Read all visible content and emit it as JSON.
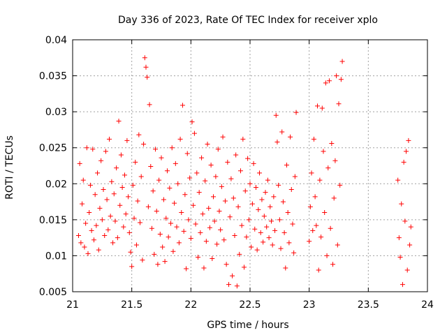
{
  "chart_data": {
    "type": "scatter",
    "title": "Day 336 of 2023, Rate Of TEC Index for receiver xplo",
    "xlabel": "GPS time / hours",
    "ylabel": "ROTI / TECUs",
    "xlim": [
      21,
      24
    ],
    "ylim": [
      0.005,
      0.04
    ],
    "x_ticks": [
      21,
      21.5,
      22,
      22.5,
      23,
      23.5,
      24
    ],
    "x_tick_labels": [
      "21",
      "21.5",
      "22",
      "22.5",
      "23",
      "23.5",
      "24"
    ],
    "y_ticks": [
      0.005,
      0.01,
      0.015,
      0.02,
      0.025,
      0.03,
      0.035,
      0.04
    ],
    "y_tick_labels": [
      "0.005",
      "0.01",
      "0.015",
      "0.02",
      "0.025",
      "0.03",
      "0.035",
      "0.04"
    ],
    "grid": true,
    "marker": "+",
    "color": "#ff0000",
    "series": [
      {
        "points": [
          [
            21.05,
            0.0128
          ],
          [
            21.06,
            0.0228
          ],
          [
            21.07,
            0.0118
          ],
          [
            21.08,
            0.0172
          ],
          [
            21.09,
            0.0205
          ],
          [
            21.1,
            0.0112
          ],
          [
            21.11,
            0.0145
          ],
          [
            21.12,
            0.025
          ],
          [
            21.13,
            0.0103
          ],
          [
            21.14,
            0.016
          ],
          [
            21.15,
            0.0198
          ],
          [
            21.16,
            0.0135
          ],
          [
            21.17,
            0.0248
          ],
          [
            21.18,
            0.0122
          ],
          [
            21.19,
            0.0185
          ],
          [
            21.2,
            0.0142
          ],
          [
            21.21,
            0.0215
          ],
          [
            21.22,
            0.0108
          ],
          [
            21.23,
            0.0166
          ],
          [
            21.24,
            0.0232
          ],
          [
            21.25,
            0.015
          ],
          [
            21.26,
            0.0192
          ],
          [
            21.27,
            0.0128
          ],
          [
            21.28,
            0.0245
          ],
          [
            21.29,
            0.0178
          ],
          [
            21.3,
            0.0136
          ],
          [
            21.31,
            0.0262
          ],
          [
            21.32,
            0.0155
          ],
          [
            21.33,
            0.0203
          ],
          [
            21.34,
            0.0118
          ],
          [
            21.35,
            0.0186
          ],
          [
            21.36,
            0.0148
          ],
          [
            21.37,
            0.0222
          ],
          [
            21.38,
            0.0125
          ],
          [
            21.39,
            0.0287
          ],
          [
            21.4,
            0.017
          ],
          [
            21.41,
            0.024
          ],
          [
            21.42,
            0.0195
          ],
          [
            21.43,
            0.014
          ],
          [
            21.44,
            0.0212
          ],
          [
            21.45,
            0.0158
          ],
          [
            21.46,
            0.026
          ],
          [
            21.47,
            0.0182
          ],
          [
            21.48,
            0.0132
          ],
          [
            21.49,
            0.0105
          ],
          [
            21.5,
            0.0085
          ],
          [
            21.51,
            0.0198
          ],
          [
            21.52,
            0.0152
          ],
          [
            21.53,
            0.023
          ],
          [
            21.54,
            0.0115
          ],
          [
            21.55,
            0.0176
          ],
          [
            21.56,
            0.0268
          ],
          [
            21.57,
            0.0146
          ],
          [
            21.58,
            0.021
          ],
          [
            21.59,
            0.0094
          ],
          [
            21.6,
            0.0255
          ],
          [
            21.61,
            0.0375
          ],
          [
            21.62,
            0.0362
          ],
          [
            21.63,
            0.0348
          ],
          [
            21.64,
            0.0168
          ],
          [
            21.65,
            0.031
          ],
          [
            21.66,
            0.0224
          ],
          [
            21.67,
            0.0138
          ],
          [
            21.68,
            0.019
          ],
          [
            21.69,
            0.0102
          ],
          [
            21.7,
            0.0248
          ],
          [
            21.71,
            0.0162
          ],
          [
            21.72,
            0.0088
          ],
          [
            21.73,
            0.0205
          ],
          [
            21.74,
            0.013
          ],
          [
            21.75,
            0.0236
          ],
          [
            21.76,
            0.0112
          ],
          [
            21.77,
            0.0178
          ],
          [
            21.78,
            0.0092
          ],
          [
            21.79,
            0.0152
          ],
          [
            21.8,
            0.0218
          ],
          [
            21.81,
            0.0126
          ],
          [
            21.82,
            0.0194
          ],
          [
            21.83,
            0.0145
          ],
          [
            21.84,
            0.025
          ],
          [
            21.85,
            0.0106
          ],
          [
            21.86,
            0.0173
          ],
          [
            21.87,
            0.0228
          ],
          [
            21.88,
            0.014
          ],
          [
            21.89,
            0.02
          ],
          [
            21.9,
            0.0118
          ],
          [
            21.91,
            0.0262
          ],
          [
            21.92,
            0.016
          ],
          [
            21.93,
            0.0309
          ],
          [
            21.94,
            0.0134
          ],
          [
            21.95,
            0.0185
          ],
          [
            21.96,
            0.0082
          ],
          [
            21.97,
            0.0242
          ],
          [
            21.98,
            0.015
          ],
          [
            21.99,
            0.0208
          ],
          [
            22.0,
            0.0124
          ],
          [
            22.01,
            0.0286
          ],
          [
            22.02,
            0.017
          ],
          [
            22.03,
            0.027
          ],
          [
            22.04,
            0.0144
          ],
          [
            22.05,
            0.0215
          ],
          [
            22.06,
            0.0098
          ],
          [
            22.07,
            0.0188
          ],
          [
            22.08,
            0.0132
          ],
          [
            22.09,
            0.0236
          ],
          [
            22.1,
            0.0158
          ],
          [
            22.11,
            0.0083
          ],
          [
            22.12,
            0.0204
          ],
          [
            22.13,
            0.012
          ],
          [
            22.14,
            0.0255
          ],
          [
            22.15,
            0.0166
          ],
          [
            22.16,
            0.0139
          ],
          [
            22.17,
            0.0226
          ],
          [
            22.18,
            0.0096
          ],
          [
            22.19,
            0.0182
          ],
          [
            22.2,
            0.0148
          ],
          [
            22.21,
            0.021
          ],
          [
            22.22,
            0.0116
          ],
          [
            22.23,
            0.0248
          ],
          [
            22.24,
            0.0162
          ],
          [
            22.25,
            0.0136
          ],
          [
            22.26,
            0.0196
          ],
          [
            22.27,
            0.0265
          ],
          [
            22.28,
            0.0122
          ],
          [
            22.29,
            0.0176
          ],
          [
            22.3,
            0.0088
          ],
          [
            22.31,
            0.023
          ],
          [
            22.32,
            0.006
          ],
          [
            22.33,
            0.0154
          ],
          [
            22.34,
            0.0207
          ],
          [
            22.35,
            0.0072
          ],
          [
            22.36,
            0.018
          ],
          [
            22.37,
            0.0128
          ],
          [
            22.38,
            0.024
          ],
          [
            22.39,
            0.0058
          ],
          [
            22.4,
            0.0168
          ],
          [
            22.41,
            0.0102
          ],
          [
            22.42,
            0.0218
          ],
          [
            22.43,
            0.0142
          ],
          [
            22.44,
            0.0262
          ],
          [
            22.45,
            0.0084
          ],
          [
            22.46,
            0.019
          ],
          [
            22.47,
            0.0126
          ],
          [
            22.48,
            0.0235
          ],
          [
            22.49,
            0.015
          ],
          [
            22.5,
            0.02
          ],
          [
            22.51,
            0.0112
          ],
          [
            22.52,
            0.0172
          ],
          [
            22.53,
            0.0228
          ],
          [
            22.54,
            0.0137
          ],
          [
            22.55,
            0.0195
          ],
          [
            22.56,
            0.0108
          ],
          [
            22.57,
            0.0164
          ],
          [
            22.58,
            0.0215
          ],
          [
            22.59,
            0.0132
          ],
          [
            22.6,
            0.0178
          ],
          [
            22.61,
            0.0119
          ],
          [
            22.62,
            0.0155
          ],
          [
            22.63,
            0.0188
          ],
          [
            22.64,
            0.014
          ],
          [
            22.65,
            0.0205
          ],
          [
            22.66,
            0.0125
          ],
          [
            22.67,
            0.0168
          ],
          [
            22.68,
            0.0148
          ],
          [
            22.69,
            0.0115
          ],
          [
            22.7,
            0.0182
          ],
          [
            22.71,
            0.0135
          ],
          [
            22.72,
            0.0295
          ],
          [
            22.73,
            0.0258
          ],
          [
            22.74,
            0.0198
          ],
          [
            22.75,
            0.015
          ],
          [
            22.76,
            0.011
          ],
          [
            22.77,
            0.0272
          ],
          [
            22.78,
            0.0175
          ],
          [
            22.79,
            0.0132
          ],
          [
            22.8,
            0.0083
          ],
          [
            22.81,
            0.0226
          ],
          [
            22.82,
            0.016
          ],
          [
            22.83,
            0.0118
          ],
          [
            22.84,
            0.0265
          ],
          [
            22.85,
            0.0192
          ],
          [
            22.86,
            0.0144
          ],
          [
            22.87,
            0.0104
          ],
          [
            22.88,
            0.021
          ],
          [
            22.89,
            0.0299
          ],
          [
            23.0,
            0.012
          ],
          [
            23.01,
            0.0168
          ],
          [
            23.02,
            0.0215
          ],
          [
            23.03,
            0.0135
          ],
          [
            23.04,
            0.0262
          ],
          [
            23.05,
            0.0182
          ],
          [
            23.06,
            0.0142
          ],
          [
            23.07,
            0.0308
          ],
          [
            23.08,
            0.008
          ],
          [
            23.09,
            0.0205
          ],
          [
            23.1,
            0.0126
          ],
          [
            23.11,
            0.0305
          ],
          [
            23.12,
            0.0245
          ],
          [
            23.13,
            0.016
          ],
          [
            23.14,
            0.034
          ],
          [
            23.15,
            0.01
          ],
          [
            23.16,
            0.0222
          ],
          [
            23.17,
            0.0343
          ],
          [
            23.18,
            0.0138
          ],
          [
            23.19,
            0.0256
          ],
          [
            23.2,
            0.0088
          ],
          [
            23.21,
            0.018
          ],
          [
            23.22,
            0.0232
          ],
          [
            23.23,
            0.035
          ],
          [
            23.24,
            0.0115
          ],
          [
            23.25,
            0.0311
          ],
          [
            23.26,
            0.0198
          ],
          [
            23.27,
            0.0345
          ],
          [
            23.28,
            0.037
          ],
          [
            23.75,
            0.0205
          ],
          [
            23.76,
            0.0125
          ],
          [
            23.77,
            0.0098
          ],
          [
            23.78,
            0.0172
          ],
          [
            23.79,
            0.006
          ],
          [
            23.8,
            0.023
          ],
          [
            23.81,
            0.0148
          ],
          [
            23.82,
            0.0245
          ],
          [
            23.83,
            0.008
          ],
          [
            23.84,
            0.026
          ],
          [
            23.85,
            0.0115
          ],
          [
            23.86,
            0.014
          ]
        ]
      }
    ]
  }
}
